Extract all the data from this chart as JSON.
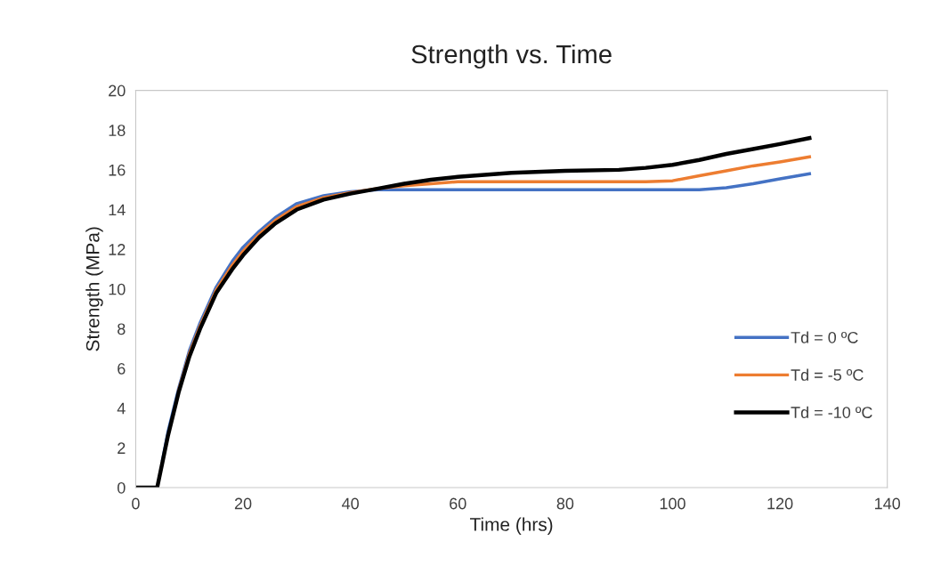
{
  "chart_data": {
    "type": "line",
    "title": "Strength vs. Time",
    "xlabel": "Time (hrs)",
    "ylabel": "Strength (MPa)",
    "x": [
      0,
      4,
      5,
      6,
      8,
      10,
      12,
      15,
      18,
      20,
      23,
      26,
      30,
      35,
      40,
      45,
      50,
      55,
      60,
      70,
      80,
      90,
      95,
      100,
      105,
      110,
      115,
      120,
      125.5
    ],
    "series": [
      {
        "name": "Td = 0 ºC",
        "color": "#4472c4",
        "values": [
          null,
          null,
          1.4,
          2.8,
          5.0,
          6.9,
          8.3,
          10.1,
          11.4,
          12.1,
          12.9,
          13.6,
          14.3,
          14.7,
          14.9,
          15.0,
          15.0,
          15.0,
          15.0,
          15.0,
          15.0,
          15.0,
          15.0,
          15.0,
          15.0,
          15.1,
          15.3,
          15.55,
          15.8
        ]
      },
      {
        "name": "Td = -5 ºC",
        "color": "#ed7d31",
        "values": [
          null,
          null,
          null,
          null,
          4.9,
          6.75,
          8.15,
          9.95,
          11.2,
          11.9,
          12.75,
          13.45,
          14.15,
          14.6,
          14.85,
          15.05,
          15.2,
          15.3,
          15.4,
          15.4,
          15.4,
          15.4,
          15.4,
          15.45,
          15.7,
          15.95,
          16.2,
          16.4,
          16.65
        ]
      },
      {
        "name": "Td = -10 ºC",
        "color": "#000000",
        "values": [
          0,
          0,
          1.3,
          2.6,
          4.8,
          6.6,
          8.0,
          9.8,
          11.0,
          11.7,
          12.6,
          13.3,
          14.0,
          14.5,
          14.8,
          15.05,
          15.3,
          15.5,
          15.65,
          15.85,
          15.95,
          16.0,
          16.1,
          16.25,
          16.5,
          16.8,
          17.05,
          17.3,
          17.6
        ]
      }
    ],
    "xlim": [
      0,
      140
    ],
    "xticks": [
      0,
      20,
      40,
      60,
      80,
      100,
      120,
      140
    ],
    "ylim": [
      0,
      20
    ],
    "yticks": [
      0,
      2,
      4,
      6,
      8,
      10,
      12,
      14,
      16,
      18,
      20
    ],
    "grid": false,
    "legend": "right",
    "marker": "none",
    "line_style": "solid"
  }
}
